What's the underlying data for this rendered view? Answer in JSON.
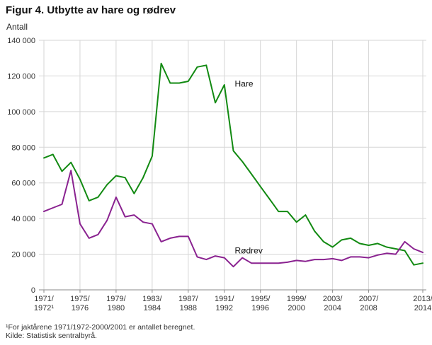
{
  "title": "Figur 4. Utbytte av hare og rødrev",
  "footnote": "¹For jaktårene 1971/1972-2000/2001 er antallet beregnet.",
  "source": "Kilde: Statistisk sentralbyrå.",
  "chart_data": {
    "type": "line",
    "title": "Figur 4. Utbytte av hare og rødrev",
    "xlabel": "",
    "ylabel": "Antall",
    "ylim": [
      0,
      140000
    ],
    "y_tick_step": 20000,
    "y_tick_labels": [
      "0",
      "20 000",
      "40 000",
      "60 000",
      "80 000",
      "100 000",
      "120 000",
      "140 000"
    ],
    "grid": true,
    "legend_position": "inline-labels",
    "colors": {
      "grid": "#d6d6d6",
      "axis": "#8a8a8a",
      "text": "#333333"
    },
    "categories": [
      "1971/72",
      "1972/73",
      "1973/74",
      "1974/75",
      "1975/76",
      "1976/77",
      "1977/78",
      "1978/79",
      "1979/80",
      "1980/81",
      "1981/82",
      "1982/83",
      "1983/84",
      "1984/85",
      "1985/86",
      "1986/87",
      "1987/88",
      "1988/89",
      "1989/90",
      "1990/91",
      "1991/92",
      "1992/93",
      "1993/94",
      "1994/95",
      "1995/96",
      "1996/97",
      "1997/98",
      "1998/99",
      "1999/00",
      "2000/01",
      "2001/02",
      "2002/03",
      "2003/04",
      "2004/05",
      "2005/06",
      "2006/07",
      "2007/08",
      "2008/09",
      "2009/10",
      "2010/11",
      "2011/12",
      "2012/13",
      "2013/14"
    ],
    "x_ticks": [
      {
        "index": 0,
        "line1": "1971/",
        "line2": "1972¹"
      },
      {
        "index": 4,
        "line1": "1975/",
        "line2": "1976"
      },
      {
        "index": 8,
        "line1": "1979/",
        "line2": "1980"
      },
      {
        "index": 12,
        "line1": "1983/",
        "line2": "1984"
      },
      {
        "index": 16,
        "line1": "1987/",
        "line2": "1988"
      },
      {
        "index": 20,
        "line1": "1991/",
        "line2": "1992"
      },
      {
        "index": 24,
        "line1": "1995/",
        "line2": "1996"
      },
      {
        "index": 28,
        "line1": "1999/",
        "line2": "2000"
      },
      {
        "index": 32,
        "line1": "2003/",
        "line2": "2004"
      },
      {
        "index": 36,
        "line1": "2007/",
        "line2": "2008"
      },
      {
        "index": 42,
        "line1": "2013/",
        "line2": "2014"
      }
    ],
    "series": [
      {
        "name": "Hare",
        "color": "#128a12",
        "values": [
          74000,
          76000,
          66500,
          71500,
          62000,
          50000,
          52000,
          59000,
          64000,
          63000,
          54000,
          63000,
          75000,
          127000,
          116000,
          116000,
          117000,
          125000,
          126000,
          105000,
          115000,
          78000,
          72000,
          65000,
          58000,
          51000,
          44000,
          44000,
          38000,
          42000,
          33000,
          27000,
          24000,
          28000,
          29000,
          26000,
          25000,
          26000,
          24000,
          23000,
          22000,
          14000,
          15000
        ]
      },
      {
        "name": "Rødrev",
        "color": "#8a2290",
        "values": [
          44000,
          46000,
          48000,
          67000,
          37000,
          29000,
          31000,
          39000,
          52000,
          41000,
          42000,
          38000,
          37000,
          27000,
          29000,
          30000,
          30000,
          18500,
          17000,
          19000,
          18000,
          13000,
          18000,
          15000,
          15000,
          15000,
          15000,
          15500,
          16500,
          16000,
          17000,
          17000,
          17500,
          16500,
          18500,
          18500,
          18000,
          19500,
          20500,
          20000,
          27000,
          23000,
          21000
        ]
      }
    ],
    "series_labels": [
      {
        "text": "Hare",
        "at_index": 21,
        "at_value": 114000
      },
      {
        "text": "Rødrev",
        "at_index": 21,
        "at_value": 20500
      }
    ]
  }
}
